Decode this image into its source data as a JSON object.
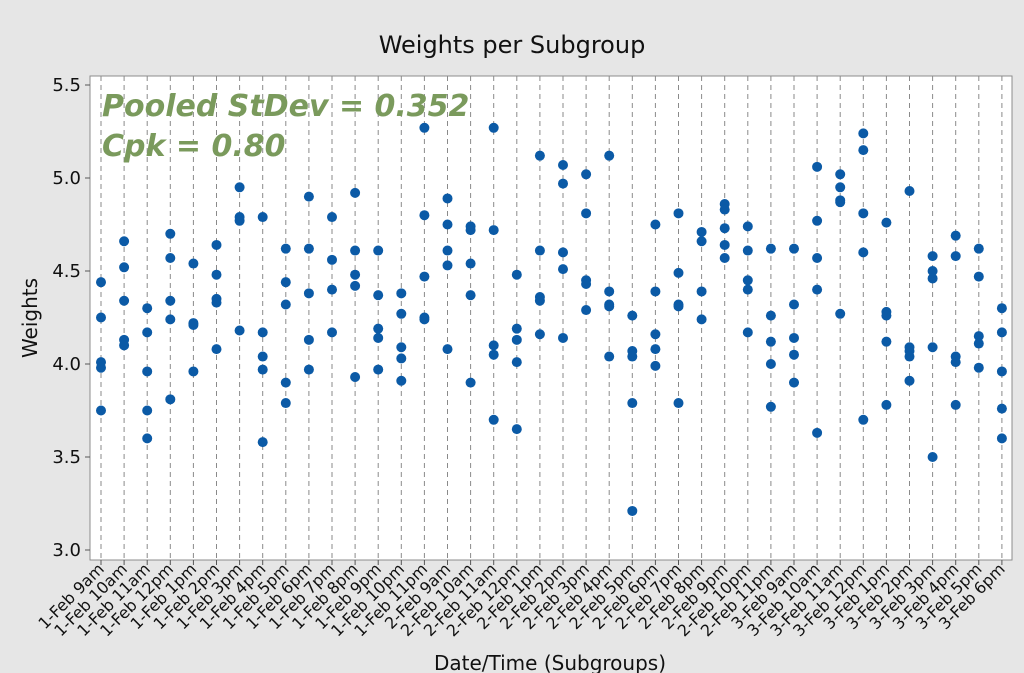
{
  "chart_data": {
    "type": "scatter",
    "title": "Weights per Subgroup",
    "xlabel": "Date/Time (Subgroups)",
    "ylabel": "Weights",
    "ylim": [
      3.0,
      5.5
    ],
    "yticks": [
      "3.0",
      "3.5",
      "4.0",
      "4.5",
      "5.0",
      "5.5"
    ],
    "grid": "vertical dashed",
    "annotations": [
      "Pooled StDev = 0.352",
      "Cpk = 0.80"
    ],
    "categories": [
      "1-Feb 9am",
      "1-Feb 10am",
      "1-Feb 11am",
      "1-Feb 12pm",
      "1-Feb 1pm",
      "1-Feb 2pm",
      "1-Feb 3pm",
      "1-Feb 4pm",
      "1-Feb 5pm",
      "1-Feb 6pm",
      "1-Feb 7pm",
      "1-Feb 8pm",
      "1-Feb 9pm",
      "1-Feb 10pm",
      "1-Feb 11pm",
      "2-Feb 9am",
      "2-Feb 10am",
      "2-Feb 11am",
      "2-Feb 12pm",
      "2-Feb 1pm",
      "2-Feb 2pm",
      "2-Feb 3pm",
      "2-Feb 4pm",
      "2-Feb 5pm",
      "2-Feb 6pm",
      "2-Feb 7pm",
      "2-Feb 8pm",
      "2-Feb 9pm",
      "2-Feb 10pm",
      "2-Feb 11pm",
      "3-Feb 9am",
      "3-Feb 10am",
      "3-Feb 11am",
      "3-Feb 12pm",
      "3-Feb 1pm",
      "3-Feb 2pm",
      "3-Feb 3pm",
      "3-Feb 4pm",
      "3-Feb 5pm",
      "3-Feb 6pm"
    ],
    "values": [
      [
        4.44,
        4.25,
        4.01,
        3.98,
        3.75
      ],
      [
        4.66,
        4.52,
        4.34,
        4.13,
        4.1
      ],
      [
        4.3,
        4.17,
        3.96,
        3.75,
        3.6
      ],
      [
        4.7,
        4.57,
        4.34,
        4.24,
        3.81
      ],
      [
        4.54,
        4.22,
        4.21,
        3.96
      ],
      [
        4.64,
        4.48,
        4.35,
        4.33,
        4.08
      ],
      [
        4.95,
        4.79,
        4.77,
        4.18
      ],
      [
        4.79,
        4.17,
        4.04,
        3.97,
        3.58
      ],
      [
        4.62,
        4.44,
        4.32,
        3.9,
        3.79
      ],
      [
        4.9,
        4.62,
        4.38,
        4.13,
        3.97
      ],
      [
        4.79,
        4.56,
        4.4,
        4.17
      ],
      [
        4.92,
        4.61,
        4.48,
        4.42,
        3.93
      ],
      [
        4.61,
        4.37,
        4.19,
        4.14,
        3.97
      ],
      [
        4.38,
        4.27,
        4.09,
        4.03,
        3.91
      ],
      [
        5.27,
        4.8,
        4.47,
        4.25,
        4.24
      ],
      [
        4.89,
        4.75,
        4.61,
        4.53,
        4.08
      ],
      [
        4.74,
        4.72,
        4.54,
        4.37,
        3.9
      ],
      [
        5.27,
        4.72,
        4.1,
        4.05,
        3.7
      ],
      [
        4.48,
        4.19,
        4.13,
        4.01,
        3.65
      ],
      [
        5.12,
        4.61,
        4.36,
        4.34,
        4.16
      ],
      [
        5.07,
        4.97,
        4.6,
        4.51,
        4.14
      ],
      [
        5.02,
        4.81,
        4.45,
        4.43,
        4.29
      ],
      [
        5.12,
        4.39,
        4.32,
        4.31,
        4.04
      ],
      [
        4.26,
        4.07,
        4.04,
        3.79,
        3.21
      ],
      [
        4.75,
        4.39,
        4.16,
        4.08,
        3.99
      ],
      [
        4.81,
        4.49,
        4.32,
        4.31,
        3.79
      ],
      [
        4.71,
        4.66,
        4.39,
        4.24
      ],
      [
        4.86,
        4.83,
        4.73,
        4.64,
        4.57
      ],
      [
        4.74,
        4.61,
        4.45,
        4.4,
        4.17
      ],
      [
        4.62,
        4.26,
        4.12,
        4.0,
        3.77
      ],
      [
        4.62,
        4.32,
        4.14,
        4.05,
        3.9
      ],
      [
        5.06,
        4.77,
        4.57,
        4.4,
        3.63
      ],
      [
        5.02,
        4.95,
        4.88,
        4.87,
        4.27
      ],
      [
        5.24,
        5.15,
        4.81,
        4.6,
        3.7
      ],
      [
        4.76,
        4.28,
        4.26,
        4.12,
        3.78
      ],
      [
        4.93,
        4.09,
        4.07,
        4.04,
        3.91
      ],
      [
        4.58,
        4.5,
        4.46,
        4.09,
        3.5
      ],
      [
        4.69,
        4.58,
        4.04,
        4.01,
        3.78
      ],
      [
        4.62,
        4.47,
        4.15,
        4.11,
        3.98
      ],
      [
        4.3,
        4.17,
        3.96,
        3.76,
        3.6
      ]
    ],
    "colors": {
      "point": "#0b5aa6",
      "annotation": "#7a9a5c",
      "background": "#e6e6e6",
      "plot_bg": "#ffffff"
    }
  }
}
